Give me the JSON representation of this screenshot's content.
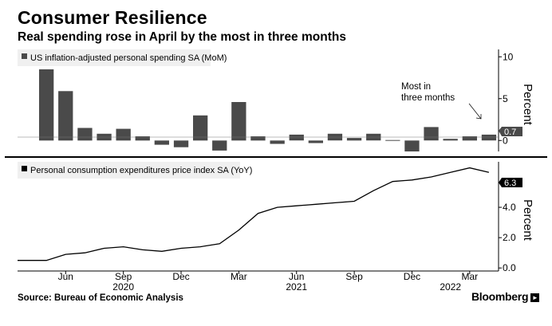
{
  "title": "Consumer Resilience",
  "subtitle": "Real spending rose in April by the most in three months",
  "source": "Source: Bureau of Economic Analysis",
  "brand": "Bloomberg",
  "colors": {
    "bar": "#4a4a4a",
    "line": "#000000",
    "legend_bg": "#f0f0f0",
    "label_bg": "#4a4a4a"
  },
  "chart_data": [
    {
      "type": "bar",
      "legend": "US inflation-adjusted personal spending SA (MoM)",
      "ylabel": "Percent",
      "ylim": [
        -1.5,
        10.5
      ],
      "yticks": [
        0,
        5,
        10
      ],
      "x": [
        "2020-05",
        "2020-06",
        "2020-07",
        "2020-08",
        "2020-09",
        "2020-10",
        "2020-11",
        "2020-12",
        "2021-01",
        "2021-02",
        "2021-03",
        "2021-04",
        "2021-05",
        "2021-06",
        "2021-07",
        "2021-08",
        "2021-09",
        "2021-10",
        "2021-11",
        "2021-12",
        "2022-01",
        "2022-02",
        "2022-03",
        "2022-04"
      ],
      "values": [
        8.5,
        5.9,
        1.5,
        0.8,
        1.4,
        0.5,
        -0.5,
        -0.8,
        3.0,
        -1.2,
        4.6,
        0.5,
        -0.4,
        0.7,
        -0.3,
        0.8,
        0.3,
        0.8,
        0.05,
        -1.3,
        1.6,
        0.2,
        0.5,
        0.7
      ],
      "last_value_label": "0.7",
      "annotation": [
        "Most in",
        "three months"
      ]
    },
    {
      "type": "line",
      "legend": "Personal consumption expenditures price index SA (YoY)",
      "ylabel": "Percent",
      "ylim": [
        -0.2,
        7.0
      ],
      "yticks": [
        "0.0",
        "2.0",
        "4.0"
      ],
      "x": [
        "2020-04",
        "2020-05",
        "2020-06",
        "2020-07",
        "2020-08",
        "2020-09",
        "2020-10",
        "2020-11",
        "2020-12",
        "2021-01",
        "2021-02",
        "2021-03",
        "2021-04",
        "2021-05",
        "2021-06",
        "2021-07",
        "2021-08",
        "2021-09",
        "2021-10",
        "2021-11",
        "2021-12",
        "2022-01",
        "2022-02",
        "2022-03",
        "2022-04"
      ],
      "values": [
        0.5,
        0.5,
        0.9,
        1.0,
        1.3,
        1.4,
        1.2,
        1.1,
        1.3,
        1.4,
        1.6,
        2.5,
        3.6,
        4.0,
        4.1,
        4.2,
        4.3,
        4.4,
        5.1,
        5.7,
        5.8,
        6.0,
        6.3,
        6.6,
        6.3
      ],
      "last_value_label": "6.3"
    }
  ],
  "x_axis": {
    "ticks": [
      {
        "month": "2020-06",
        "label": "Jun"
      },
      {
        "month": "2020-09",
        "label": "Sep"
      },
      {
        "month": "2020-12",
        "label": "Dec"
      },
      {
        "month": "2021-03",
        "label": "Mar"
      },
      {
        "month": "2021-06",
        "label": "Jun"
      },
      {
        "month": "2021-09",
        "label": "Sep"
      },
      {
        "month": "2021-12",
        "label": "Dec"
      },
      {
        "month": "2022-03",
        "label": "Mar"
      }
    ],
    "years": [
      {
        "month": "2020-09",
        "label": "2020"
      },
      {
        "month": "2021-06",
        "label": "2021"
      },
      {
        "month": "2022-02",
        "label": "2022"
      }
    ]
  }
}
